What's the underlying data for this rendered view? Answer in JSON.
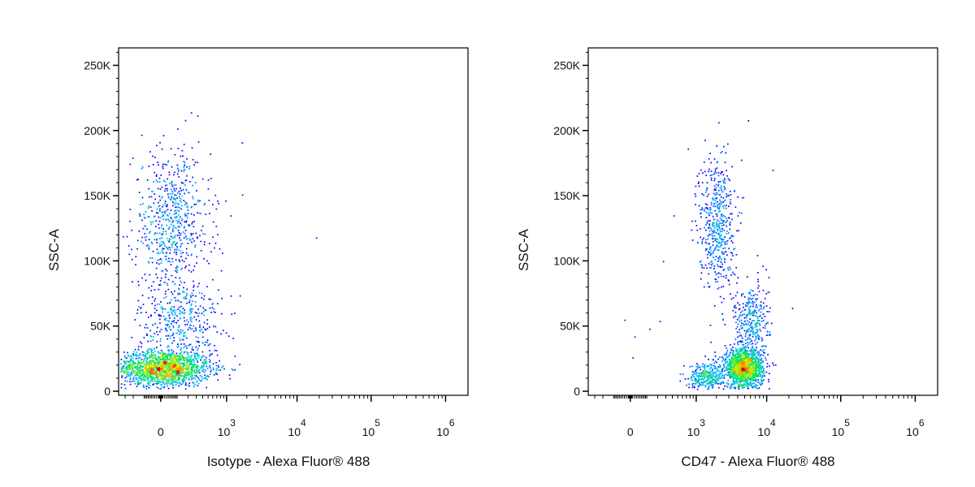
{
  "chart_data": [
    {
      "type": "scatter",
      "style": "pseudocolor-density",
      "ylabel": "SSC-A",
      "xlabel": "Isotype - Alexa Fluor® 488",
      "x_scale": "biexponential",
      "ylim": [
        0,
        262144
      ],
      "y_ticks": [
        {
          "value": 0,
          "label": "0"
        },
        {
          "value": 50000,
          "label": "50K"
        },
        {
          "value": 100000,
          "label": "100K"
        },
        {
          "value": 150000,
          "label": "150K"
        },
        {
          "value": 200000,
          "label": "200K"
        },
        {
          "value": 250000,
          "label": "250K"
        }
      ],
      "x_ticks": [
        {
          "value": 0,
          "label": "0",
          "exp": ""
        },
        {
          "value": 1000,
          "label": "10",
          "exp": "3"
        },
        {
          "value": 10000,
          "label": "10",
          "exp": "4"
        },
        {
          "value": 100000,
          "label": "10",
          "exp": "5"
        },
        {
          "value": 1000000,
          "label": "10",
          "exp": "6"
        }
      ],
      "populations": [
        {
          "x": 10,
          "y": 18000,
          "count": 1700,
          "spread_x": 0.32,
          "spread_y": 7000,
          "intensity": 1.0
        },
        {
          "x": 120,
          "y": 55000,
          "count": 380,
          "spread_x": 0.28,
          "spread_y": 16000,
          "intensity": 0.15
        },
        {
          "x": 60,
          "y": 130000,
          "count": 650,
          "spread_x": 0.26,
          "spread_y": 28000,
          "intensity": 0.25
        }
      ],
      "outliers": [
        {
          "x": 1700,
          "y": 151000
        },
        {
          "x": 18000,
          "y": 118000
        },
        {
          "x": 420,
          "y": 115000
        },
        {
          "x": 600,
          "y": 17000
        },
        {
          "x": 900,
          "y": 17500
        },
        {
          "x": -140,
          "y": 135000
        },
        {
          "x": 310,
          "y": 176000
        },
        {
          "x": 230,
          "y": 214000
        }
      ]
    },
    {
      "type": "scatter",
      "style": "pseudocolor-density",
      "ylabel": "SSC-A",
      "xlabel": "CD47 - Alexa Fluor® 488",
      "x_scale": "biexponential",
      "ylim": [
        0,
        262144
      ],
      "y_ticks": [
        {
          "value": 0,
          "label": "0"
        },
        {
          "value": 50000,
          "label": "50K"
        },
        {
          "value": 100000,
          "label": "100K"
        },
        {
          "value": 150000,
          "label": "150K"
        },
        {
          "value": 200000,
          "label": "200K"
        },
        {
          "value": 250000,
          "label": "250K"
        }
      ],
      "x_ticks": [
        {
          "value": 0,
          "label": "0",
          "exp": ""
        },
        {
          "value": 1000,
          "label": "10",
          "exp": "3"
        },
        {
          "value": 10000,
          "label": "10",
          "exp": "4"
        },
        {
          "value": 100000,
          "label": "10",
          "exp": "5"
        },
        {
          "value": 1000000,
          "label": "10",
          "exp": "6"
        }
      ],
      "populations": [
        {
          "x": 4800,
          "y": 18000,
          "count": 1500,
          "spread_x": 0.13,
          "spread_y": 7500,
          "intensity": 1.0
        },
        {
          "x": 1400,
          "y": 12000,
          "count": 320,
          "spread_x": 0.12,
          "spread_y": 5000,
          "intensity": 0.4
        },
        {
          "x": 6000,
          "y": 55000,
          "count": 330,
          "spread_x": 0.12,
          "spread_y": 15000,
          "intensity": 0.15
        },
        {
          "x": 2000,
          "y": 130000,
          "count": 520,
          "spread_x": 0.12,
          "spread_y": 26000,
          "intensity": 0.25
        }
      ],
      "outliers": [
        {
          "x": -30,
          "y": 55000
        },
        {
          "x": 20,
          "y": 42000
        },
        {
          "x": 10,
          "y": 26000
        },
        {
          "x": 120,
          "y": 48000
        },
        {
          "x": 220,
          "y": 54000
        },
        {
          "x": 260,
          "y": 100000
        },
        {
          "x": 420,
          "y": 135000
        },
        {
          "x": 12000,
          "y": 170000
        },
        {
          "x": 22000,
          "y": 64000
        },
        {
          "x": 5500,
          "y": 208000
        }
      ]
    }
  ]
}
